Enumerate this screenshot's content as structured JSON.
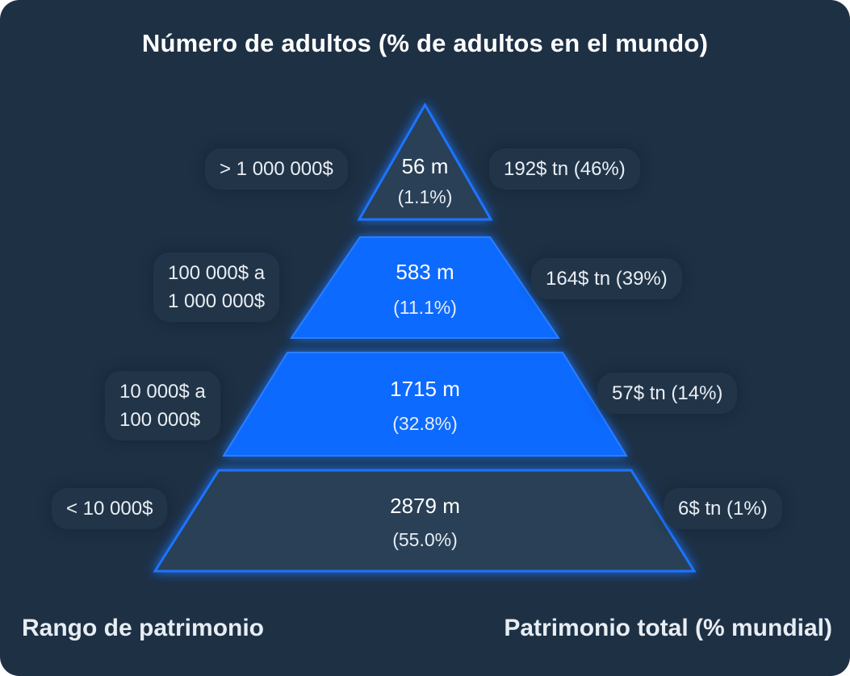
{
  "title": "Número de adultos (% de adultos en el mundo)",
  "footer": {
    "left_label": "Rango de patrimonio",
    "right_label": "Patrimonio total (% mundial)"
  },
  "colors": {
    "background": "#1e3044",
    "tier_dark": "#2b3f56",
    "tier_blue": "#0f6bff",
    "glow": "#1a74ff",
    "pill": "#223548"
  },
  "tiers": [
    {
      "range_lines": [
        "> 1 000 000$"
      ],
      "adults": "56 m",
      "adults_pct": "(1.1%)",
      "wealth": "192$ tn (46%)",
      "highlight": false
    },
    {
      "range_lines": [
        "100 000$ a",
        "1 000 000$"
      ],
      "adults": "583 m",
      "adults_pct": "(11.1%)",
      "wealth": "164$ tn (39%)",
      "highlight": true
    },
    {
      "range_lines": [
        "10 000$ a",
        "100 000$"
      ],
      "adults": "1715 m",
      "adults_pct": "(32.8%)",
      "wealth": "57$ tn (14%)",
      "highlight": true
    },
    {
      "range_lines": [
        "< 10 000$"
      ],
      "adults": "2879 m",
      "adults_pct": "(55.0%)",
      "wealth": "6$ tn (1%)",
      "highlight": false
    }
  ]
}
